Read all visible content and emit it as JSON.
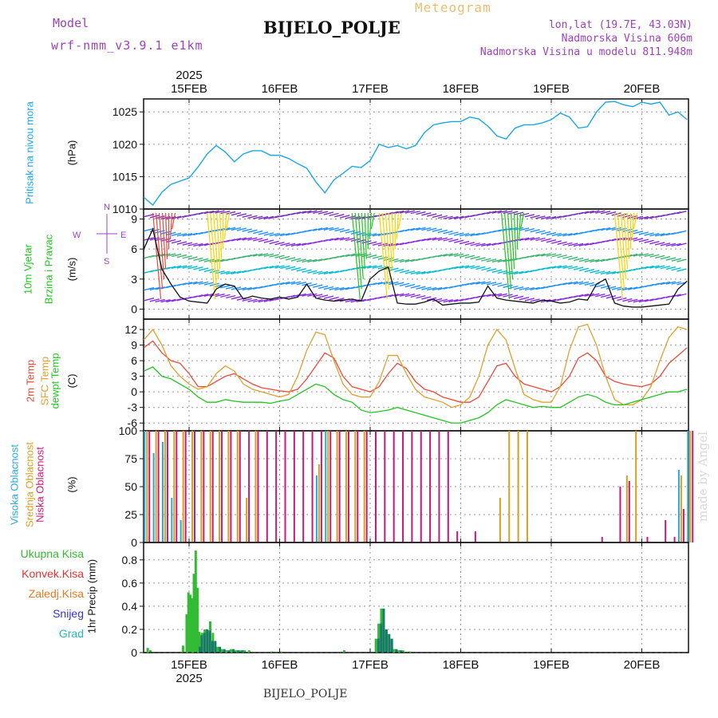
{
  "header": {
    "model_label": "Model",
    "model_name": "wrf-nmm_v3.9.1 e1km",
    "title": "Meteogram",
    "station": "BIJELO_POLJE",
    "lonlat": "lon,lat (19.7E, 43.03N)",
    "elevation": "Nadmorska Visina 606m",
    "model_elevation": "Nadmorska Visina u modelu 811.948m"
  },
  "footer": {
    "station": "BIJELO_POLJE",
    "watermark": "made by Angel"
  },
  "colors": {
    "pressure": "#1aa7e6",
    "temp": "#e84a3c",
    "sfc_temp": "#e0a030",
    "dewpt": "#22c422",
    "high_cloud": "#2aa8d8",
    "mid_cloud": "#d8a020",
    "low_cloud": "#c8187a",
    "total_rain": "#33bb33",
    "conv_rain": "#e83030",
    "frz_rain": "#ee7722",
    "snow": "#3333cc",
    "hail": "#22b8b8",
    "model_text": "#a040c0",
    "title_text": "#e8c070"
  },
  "time_axis": {
    "year": "2025",
    "labels": [
      "15FEB",
      "16FEB",
      "17FEB",
      "18FEB",
      "19FEB",
      "20FEB"
    ]
  },
  "chart_data": [
    {
      "type": "line",
      "panel": "pressure",
      "ylabel_parts": [
        "Pritisak na nivou mora",
        "(hPa)"
      ],
      "ylim": [
        1010,
        1027
      ],
      "yticks": [
        1010,
        1015,
        1020,
        1025
      ],
      "grid": true,
      "x_days": [
        -0.5,
        -0.4,
        -0.3,
        -0.2,
        -0.1,
        0.0,
        0.1,
        0.2,
        0.3,
        0.4,
        0.5,
        0.6,
        0.7,
        0.8,
        0.9,
        1.0,
        1.1,
        1.2,
        1.3,
        1.4,
        1.5,
        1.6,
        1.7,
        1.8,
        1.9,
        2.0,
        2.1,
        2.2,
        2.3,
        2.4,
        2.5,
        2.6,
        2.7,
        2.8,
        2.9,
        3.0,
        3.1,
        3.2,
        3.3,
        3.4,
        3.5,
        3.6,
        3.7,
        3.8,
        3.9,
        4.0,
        4.1,
        4.2,
        4.3,
        4.4,
        4.5,
        4.6,
        4.7,
        4.8,
        4.9,
        5.0,
        5.1,
        5.2,
        5.3,
        5.4,
        5.5
      ],
      "series": [
        {
          "values": [
            1011.8,
            1010.6,
            1012.6,
            1013.8,
            1014.3,
            1014.8,
            1016.5,
            1018.5,
            1019.8,
            1018.8,
            1017.3,
            1018.5,
            1019.0,
            1019.0,
            1018.3,
            1018.3,
            1017.8,
            1017.0,
            1016.3,
            1014.2,
            1012.5,
            1014.5,
            1015.5,
            1016.6,
            1016.4,
            1017.5,
            1020.0,
            1019.5,
            1019.8,
            1019.3,
            1019.8,
            1021.8,
            1023.0,
            1023.3,
            1023.5,
            1023.5,
            1024.2,
            1023.9,
            1022.8,
            1021.3,
            1020.8,
            1022.5,
            1023.0,
            1023.0,
            1023.3,
            1023.8,
            1024.8,
            1024.2,
            1022.5,
            1022.7,
            1025.0,
            1026.5,
            1026.6,
            1026.1,
            1025.8,
            1026.5,
            1026.2,
            1026.5,
            1024.5,
            1025.0,
            1023.8
          ]
        }
      ]
    },
    {
      "type": "line",
      "panel": "wind",
      "ylabel_parts": [
        "10m Vjetar",
        "Brzina i Pravac",
        "(m/s)"
      ],
      "compass": {
        "n": "N",
        "s": "S",
        "e": "E",
        "w": "W"
      },
      "ylim": [
        -1,
        10
      ],
      "yticks": [
        0,
        3,
        6,
        9
      ],
      "grid": true,
      "x_days": [
        -0.5,
        -0.4,
        -0.3,
        -0.2,
        -0.1,
        0.0,
        0.1,
        0.2,
        0.3,
        0.4,
        0.5,
        0.6,
        0.7,
        0.8,
        0.9,
        1.0,
        1.1,
        1.2,
        1.3,
        1.4,
        1.5,
        1.6,
        1.7,
        1.8,
        1.9,
        2.0,
        2.1,
        2.2,
        2.3,
        2.4,
        2.5,
        2.6,
        2.7,
        2.8,
        2.9,
        3.0,
        3.1,
        3.2,
        3.3,
        3.4,
        3.5,
        3.6,
        3.7,
        3.8,
        3.9,
        4.0,
        4.1,
        4.2,
        4.3,
        4.4,
        4.5,
        4.6,
        4.7,
        4.8,
        4.9,
        5.0,
        5.1,
        5.2,
        5.3,
        5.4,
        5.5
      ],
      "series": [
        {
          "values": [
            6.0,
            8.0,
            4.0,
            2.5,
            1.2,
            0.8,
            0.7,
            0.6,
            2.0,
            2.5,
            2.3,
            1.0,
            1.3,
            1.1,
            1.0,
            1.2,
            1.0,
            1.2,
            2.5,
            1.1,
            0.9,
            0.8,
            0.9,
            1.0,
            0.8,
            3.0,
            3.8,
            4.2,
            0.6,
            0.5,
            0.5,
            0.7,
            1.0,
            0.4,
            0.5,
            0.6,
            0.6,
            0.7,
            2.3,
            1.1,
            0.9,
            0.8,
            0.7,
            0.6,
            0.9,
            0.8,
            0.6,
            0.7,
            1.0,
            0.9,
            2.5,
            3.0,
            0.6,
            0.3,
            0.2,
            0.2,
            0.3,
            0.4,
            0.5,
            2.0,
            2.8
          ]
        }
      ]
    },
    {
      "type": "line",
      "panel": "temperature",
      "ylabel_parts": [
        "2m Temp",
        "SFC Temp",
        "dewpt Temp",
        "(C)"
      ],
      "ylim": [
        -7.5,
        14
      ],
      "yticks": [
        -6,
        -3,
        0,
        3,
        6,
        9,
        12
      ],
      "grid": true,
      "x_days": [
        -0.5,
        -0.4,
        -0.3,
        -0.2,
        -0.1,
        0.0,
        0.1,
        0.2,
        0.3,
        0.4,
        0.5,
        0.6,
        0.7,
        0.8,
        0.9,
        1.0,
        1.1,
        1.2,
        1.3,
        1.4,
        1.5,
        1.6,
        1.7,
        1.8,
        1.9,
        2.0,
        2.1,
        2.2,
        2.3,
        2.4,
        2.5,
        2.6,
        2.7,
        2.8,
        2.9,
        3.0,
        3.1,
        3.2,
        3.3,
        3.4,
        3.5,
        3.6,
        3.7,
        3.8,
        3.9,
        4.0,
        4.1,
        4.2,
        4.3,
        4.4,
        4.5,
        4.6,
        4.7,
        4.8,
        4.9,
        5.0,
        5.1,
        5.2,
        5.3,
        5.4,
        5.5
      ],
      "series": [
        {
          "name": "2m Temp",
          "values": [
            8.5,
            9.8,
            7.5,
            6.0,
            5.5,
            3.5,
            1.0,
            1.0,
            2.0,
            3.0,
            3.5,
            2.5,
            1.5,
            0.8,
            0.5,
            0.2,
            0.0,
            0.5,
            2.5,
            5.0,
            7.5,
            6.5,
            3.0,
            1.0,
            0.5,
            0.0,
            1.0,
            3.5,
            5.5,
            4.5,
            2.0,
            0.5,
            0.0,
            -1.0,
            -1.5,
            -2.0,
            -2.0,
            -1.0,
            2.0,
            5.0,
            5.5,
            3.0,
            1.5,
            1.0,
            0.5,
            0.0,
            1.0,
            3.0,
            6.5,
            7.5,
            6.0,
            3.0,
            2.0,
            1.5,
            1.2,
            1.0,
            1.5,
            3.0,
            5.5,
            7.0,
            8.5
          ]
        },
        {
          "name": "SFC Temp",
          "values": [
            10.0,
            12.0,
            9.0,
            5.0,
            3.0,
            1.5,
            0.5,
            1.0,
            3.5,
            5.0,
            4.0,
            1.5,
            0.5,
            0.0,
            -0.5,
            -1.0,
            -0.5,
            3.0,
            8.0,
            11.5,
            11.0,
            6.0,
            1.5,
            -0.5,
            -1.0,
            -1.0,
            2.0,
            7.0,
            7.0,
            3.5,
            0.5,
            -1.0,
            -1.5,
            -2.0,
            -3.0,
            -2.5,
            -1.0,
            3.0,
            9.0,
            12.0,
            10.0,
            4.5,
            -0.5,
            -1.5,
            -2.0,
            -2.0,
            1.0,
            8.0,
            12.5,
            13.0,
            9.0,
            3.0,
            -1.5,
            -2.5,
            -2.5,
            -1.5,
            1.0,
            6.0,
            10.5,
            12.5,
            12.0
          ]
        },
        {
          "name": "dewpt Temp",
          "values": [
            4.0,
            4.8,
            3.0,
            2.5,
            1.5,
            0.5,
            -1.0,
            -2.0,
            -2.0,
            -1.5,
            -1.8,
            -2.0,
            -2.0,
            -2.0,
            -2.2,
            -1.8,
            -1.5,
            -0.5,
            0.5,
            1.5,
            1.0,
            -0.5,
            -1.5,
            -2.0,
            -3.5,
            -4.0,
            -3.8,
            -3.5,
            -3.0,
            -3.5,
            -4.0,
            -4.5,
            -5.0,
            -5.5,
            -6.0,
            -6.0,
            -5.5,
            -5.0,
            -4.0,
            -2.5,
            -1.5,
            -2.0,
            -2.5,
            -3.0,
            -2.8,
            -3.0,
            -3.0,
            -2.0,
            -1.0,
            -0.5,
            -1.0,
            -2.0,
            -2.5,
            -2.5,
            -2.0,
            -1.5,
            -1.0,
            -0.5,
            0.0,
            0.0,
            0.5
          ]
        }
      ]
    },
    {
      "type": "bar",
      "panel": "clouds",
      "ylabel_parts": [
        "Visoka Oblacnost",
        "Srednja Oblacnost",
        "Niska Oblacnost",
        "(%)"
      ],
      "ylim": [
        0,
        100
      ],
      "yticks": [
        0,
        25,
        50,
        75,
        100
      ],
      "grid": true,
      "x_days": [
        -0.5,
        -0.4,
        -0.3,
        -0.2,
        -0.1,
        0.0,
        0.1,
        0.2,
        0.3,
        0.4,
        0.5,
        0.6,
        0.7,
        0.8,
        0.9,
        1.0,
        1.1,
        1.2,
        1.3,
        1.4,
        1.5,
        1.6,
        1.7,
        1.8,
        1.9,
        2.0,
        2.1,
        2.2,
        2.3,
        2.4,
        2.5,
        2.6,
        2.7,
        2.8,
        2.9,
        3.0,
        3.1,
        3.2,
        3.3,
        3.4,
        3.5,
        3.6,
        3.7,
        3.8,
        3.9,
        4.0,
        4.1,
        4.2,
        4.3,
        4.4,
        4.5,
        4.6,
        4.7,
        4.8,
        4.9,
        5.0,
        5.1,
        5.2,
        5.3,
        5.4,
        5.5
      ],
      "series": [
        {
          "name": "Visoka Oblacnost",
          "values": [
            100,
            80,
            90,
            40,
            20,
            0,
            0,
            0,
            0,
            0,
            0,
            0,
            0,
            0,
            0,
            0,
            0,
            0,
            0,
            60,
            100,
            0,
            0,
            0,
            0,
            0,
            0,
            0,
            0,
            0,
            0,
            0,
            0,
            0,
            0,
            0,
            0,
            0,
            0,
            0,
            0,
            0,
            0,
            0,
            0,
            0,
            0,
            0,
            0,
            0,
            0,
            0,
            0,
            0,
            0,
            0,
            0,
            0,
            0,
            65,
            100
          ]
        },
        {
          "name": "Srednja Oblacnost",
          "values": [
            100,
            100,
            100,
            100,
            100,
            100,
            100,
            100,
            100,
            100,
            100,
            40,
            100,
            0,
            0,
            0,
            0,
            0,
            0,
            70,
            100,
            100,
            100,
            100,
            100,
            0,
            0,
            0,
            0,
            0,
            0,
            0,
            0,
            0,
            0,
            0,
            0,
            0,
            0,
            40,
            100,
            100,
            100,
            0,
            0,
            0,
            0,
            0,
            0,
            0,
            0,
            0,
            0,
            60,
            100,
            0,
            0,
            0,
            0,
            60,
            100
          ]
        },
        {
          "name": "Niska Oblacnost",
          "values": [
            100,
            100,
            100,
            100,
            100,
            100,
            100,
            100,
            100,
            100,
            100,
            100,
            100,
            100,
            100,
            100,
            100,
            100,
            100,
            100,
            100,
            100,
            100,
            100,
            100,
            100,
            100,
            100,
            100,
            100,
            100,
            100,
            100,
            100,
            10,
            0,
            10,
            0,
            0,
            0,
            0,
            0,
            0,
            0,
            0,
            0,
            0,
            0,
            0,
            0,
            5,
            0,
            50,
            55,
            0,
            5,
            0,
            20,
            5,
            30,
            100
          ]
        }
      ]
    },
    {
      "type": "bar",
      "panel": "precipitation",
      "ylabel_parts": [
        "1hr Precip (mm)"
      ],
      "legend": [
        "Ukupna Kisa",
        "Konvek.Kisa",
        "Zaledj.Kisa",
        "Snijeg",
        "Grad"
      ],
      "ylim": [
        0,
        0.95
      ],
      "yticks": [
        0,
        0.2,
        0.4,
        0.6,
        0.8
      ],
      "grid": true,
      "x_days": [
        -0.47,
        -0.44,
        -0.08,
        -0.04,
        -0.02,
        0.0,
        0.02,
        0.04,
        0.06,
        0.08,
        0.1,
        0.13,
        0.16,
        0.19,
        0.22,
        0.25,
        0.3,
        0.35,
        0.4,
        0.45,
        0.5,
        0.55,
        0.6,
        0.65,
        0.9,
        1.0,
        1.7,
        2.05,
        2.08,
        2.11,
        2.14,
        2.17,
        2.2,
        2.25,
        2.3,
        2.35,
        2.42
      ],
      "series": [
        {
          "name": "Ukupna Kisa",
          "values": [
            0.04,
            0.02,
            0.06,
            0.33,
            0.52,
            0.5,
            0.47,
            0.68,
            0.88,
            0.56,
            0.18,
            0.17,
            0.2,
            0.19,
            0.27,
            0.17,
            0.05,
            0.03,
            0.02,
            0.03,
            0.02,
            0.02,
            0.02,
            0.02,
            0.01,
            0.01,
            0.02,
            0.12,
            0.25,
            0.38,
            0.2,
            0.16,
            0.12,
            0.03,
            0.02,
            0.02,
            0.01
          ]
        },
        {
          "name": "Snijeg",
          "values": [
            0,
            0,
            0,
            0,
            0,
            0,
            0,
            0,
            0,
            0.05,
            0.15,
            0.17,
            0.2,
            0.19,
            0.1,
            0.1,
            0.05,
            0.03,
            0.02,
            0.03,
            0.02,
            0.02,
            0,
            0,
            0,
            0,
            0,
            0.12,
            0.25,
            0.38,
            0.2,
            0.16,
            0.12,
            0.03,
            0.02,
            0,
            0
          ]
        }
      ]
    }
  ]
}
